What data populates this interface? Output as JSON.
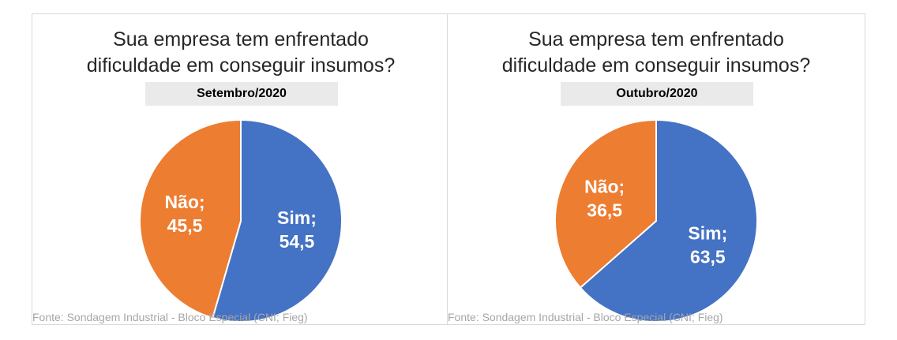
{
  "chart_data": [
    {
      "type": "pie",
      "title": "Sua empresa tem enfrentado dificuldade em conseguir insumos?",
      "title_lines": [
        "Sua empresa tem enfrentado",
        "dificuldade em conseguir insumos?"
      ],
      "subtitle": "Setembro/2020",
      "slices": [
        {
          "label": "Sim",
          "value": 54.5,
          "value_text": "54,5",
          "color": "#4472c4"
        },
        {
          "label": "Não",
          "value": 45.5,
          "value_text": "45,5",
          "color": "#ed7d31"
        }
      ],
      "source": "Fonte: Sondagem Industrial - Bloco Especial (CNI; Fieg)"
    },
    {
      "type": "pie",
      "title": "Sua empresa tem enfrentado dificuldade em conseguir insumos?",
      "title_lines": [
        "Sua empresa tem enfrentado",
        "dificuldade em conseguir insumos?"
      ],
      "subtitle": "Outubro/2020",
      "slices": [
        {
          "label": "Sim",
          "value": 63.5,
          "value_text": "63,5",
          "color": "#4472c4"
        },
        {
          "label": "Não",
          "value": 36.5,
          "value_text": "36,5",
          "color": "#ed7d31"
        }
      ],
      "source": "Fonte: Sondagem Industrial - Bloco Especial (CNI; Fieg)"
    }
  ]
}
